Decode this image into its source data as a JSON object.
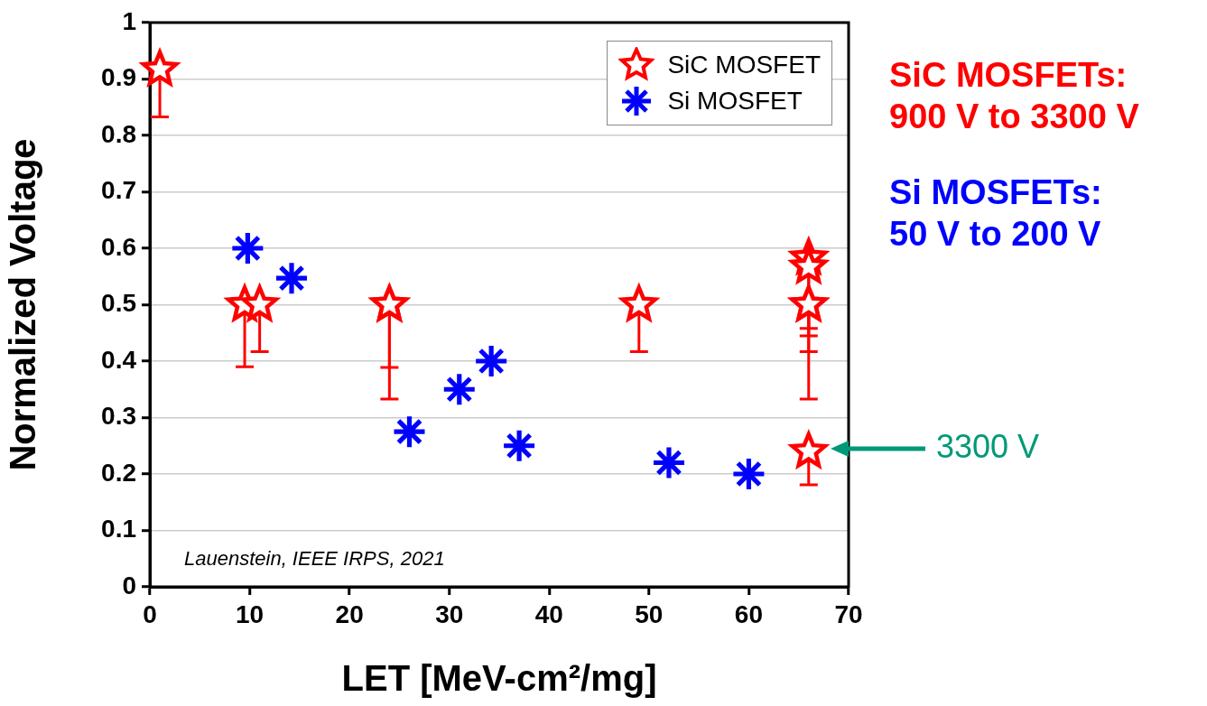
{
  "chart_data": {
    "type": "scatter",
    "xlabel": "LET [MeV-cm²/mg]",
    "ylabel": "Normalized Voltage",
    "xlim": [
      0,
      70
    ],
    "xticks": [
      0,
      10,
      20,
      30,
      40,
      50,
      60,
      70
    ],
    "ylim": [
      0,
      1
    ],
    "yticks": [
      0,
      0.1,
      0.2,
      0.3,
      0.4,
      0.5,
      0.6,
      0.7,
      0.8,
      0.9,
      1
    ],
    "grid": "y",
    "legend": "top right",
    "series": [
      {
        "name": "SiC MOSFET",
        "color": "#ff0000",
        "marker": "star",
        "x": [
          1,
          9.5,
          11,
          24,
          24,
          49,
          66,
          66,
          66,
          66,
          66
        ],
        "values": [
          0.917,
          0.5,
          0.5,
          0.5,
          0.5,
          0.5,
          0.583,
          0.567,
          0.5,
          0.5,
          0.24
        ],
        "errors": [
          [
            0.833,
            0.917
          ],
          [
            0.39,
            0.5
          ],
          [
            0.417,
            0.5
          ],
          [
            0.389,
            0.5
          ],
          [
            0.333,
            0.5
          ],
          [
            0.417,
            0.5
          ],
          [
            0.458,
            0.583
          ],
          [
            0.445,
            0.567
          ],
          [
            0.417,
            0.5
          ],
          [
            0.333,
            0.5
          ],
          [
            0.181,
            0.24
          ]
        ]
      },
      {
        "name": "Si MOSFET",
        "color": "#0000ff",
        "marker": "cross",
        "x": [
          9.8,
          14.2,
          26,
          31,
          34.2,
          37,
          52,
          60
        ],
        "values": [
          0.6,
          0.547,
          0.275,
          0.35,
          0.4,
          0.25,
          0.22,
          0.2
        ]
      }
    ],
    "annotations": [
      "Lauenstein, IEEE IRPS, 2021",
      "SiC MOSFETs:\n900 V to 3300 V",
      "Si MOSFETs:\n50 V to 200 V",
      "3300 V"
    ]
  }
}
